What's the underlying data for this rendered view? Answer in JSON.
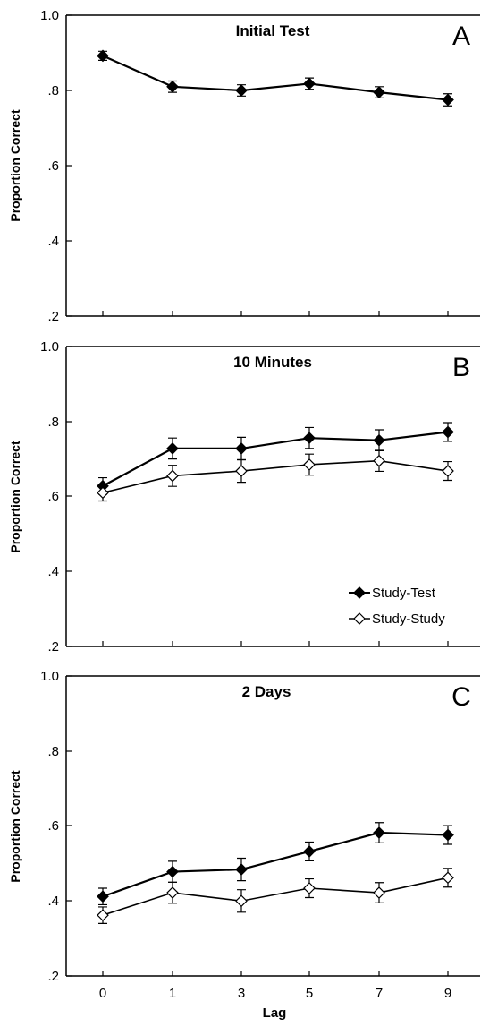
{
  "chart_data": [
    {
      "type": "line",
      "title": "Initial Test",
      "panel_letter": "A",
      "ylabel": "Proportion Correct",
      "xlabel": "",
      "categories": [
        "0",
        "1",
        "3",
        "5",
        "7",
        "9"
      ],
      "ylim": [
        0.2,
        1.0
      ],
      "yticks": [
        "1.0",
        ".8",
        ".6",
        ".4",
        ".2"
      ],
      "ytick_values": [
        1.0,
        0.8,
        0.6,
        0.4,
        0.2
      ],
      "show_x_tick_labels": false,
      "grid": false,
      "series": [
        {
          "marker": "filled-diamond",
          "color": "#000000",
          "values": [
            0.892,
            0.81,
            0.8,
            0.818,
            0.795,
            0.775
          ],
          "errors": [
            0.012,
            0.015,
            0.015,
            0.015,
            0.015,
            0.016
          ]
        }
      ]
    },
    {
      "type": "line",
      "title": "10 Minutes",
      "panel_letter": "B",
      "ylabel": "Proportion Correct",
      "xlabel": "",
      "categories": [
        "0",
        "1",
        "3",
        "5",
        "7",
        "9"
      ],
      "ylim": [
        0.2,
        1.0
      ],
      "yticks": [
        "1.0",
        ".8",
        ".6",
        ".4",
        ".2"
      ],
      "ytick_values": [
        1.0,
        0.8,
        0.6,
        0.4,
        0.2
      ],
      "show_x_tick_labels": false,
      "grid": false,
      "legend": {
        "position": "bottom-right",
        "entries": [
          {
            "label": "Study-Test",
            "marker": "filled-diamond"
          },
          {
            "label": "Study-Study",
            "marker": "open-diamond"
          }
        ]
      },
      "series": [
        {
          "name": "Study-Test",
          "marker": "filled-diamond",
          "color": "#000000",
          "values": [
            0.628,
            0.728,
            0.728,
            0.756,
            0.75,
            0.772
          ],
          "errors": [
            0.022,
            0.028,
            0.03,
            0.028,
            0.028,
            0.025
          ]
        },
        {
          "name": "Study-Study",
          "marker": "open-diamond",
          "color": "#000000",
          "values": [
            0.61,
            0.655,
            0.668,
            0.685,
            0.695,
            0.668
          ],
          "errors": [
            0.022,
            0.028,
            0.03,
            0.028,
            0.028,
            0.025
          ]
        }
      ]
    },
    {
      "type": "line",
      "title": "2 Days",
      "panel_letter": "C",
      "ylabel": "Proportion Correct",
      "xlabel": "Lag",
      "categories": [
        "0",
        "1",
        "3",
        "5",
        "7",
        "9"
      ],
      "ylim": [
        0.2,
        1.0
      ],
      "yticks": [
        "1.0",
        ".8",
        ".6",
        ".4",
        ".2"
      ],
      "ytick_values": [
        1.0,
        0.8,
        0.6,
        0.4,
        0.2
      ],
      "show_x_tick_labels": true,
      "grid": false,
      "series": [
        {
          "name": "Study-Test",
          "marker": "filled-diamond",
          "color": "#000000",
          "values": [
            0.412,
            0.478,
            0.484,
            0.532,
            0.582,
            0.576
          ],
          "errors": [
            0.022,
            0.028,
            0.03,
            0.025,
            0.027,
            0.025
          ]
        },
        {
          "name": "Study-Study",
          "marker": "open-diamond",
          "color": "#000000",
          "values": [
            0.362,
            0.422,
            0.4,
            0.434,
            0.422,
            0.462
          ],
          "errors": [
            0.022,
            0.028,
            0.03,
            0.025,
            0.027,
            0.025
          ]
        }
      ]
    }
  ]
}
